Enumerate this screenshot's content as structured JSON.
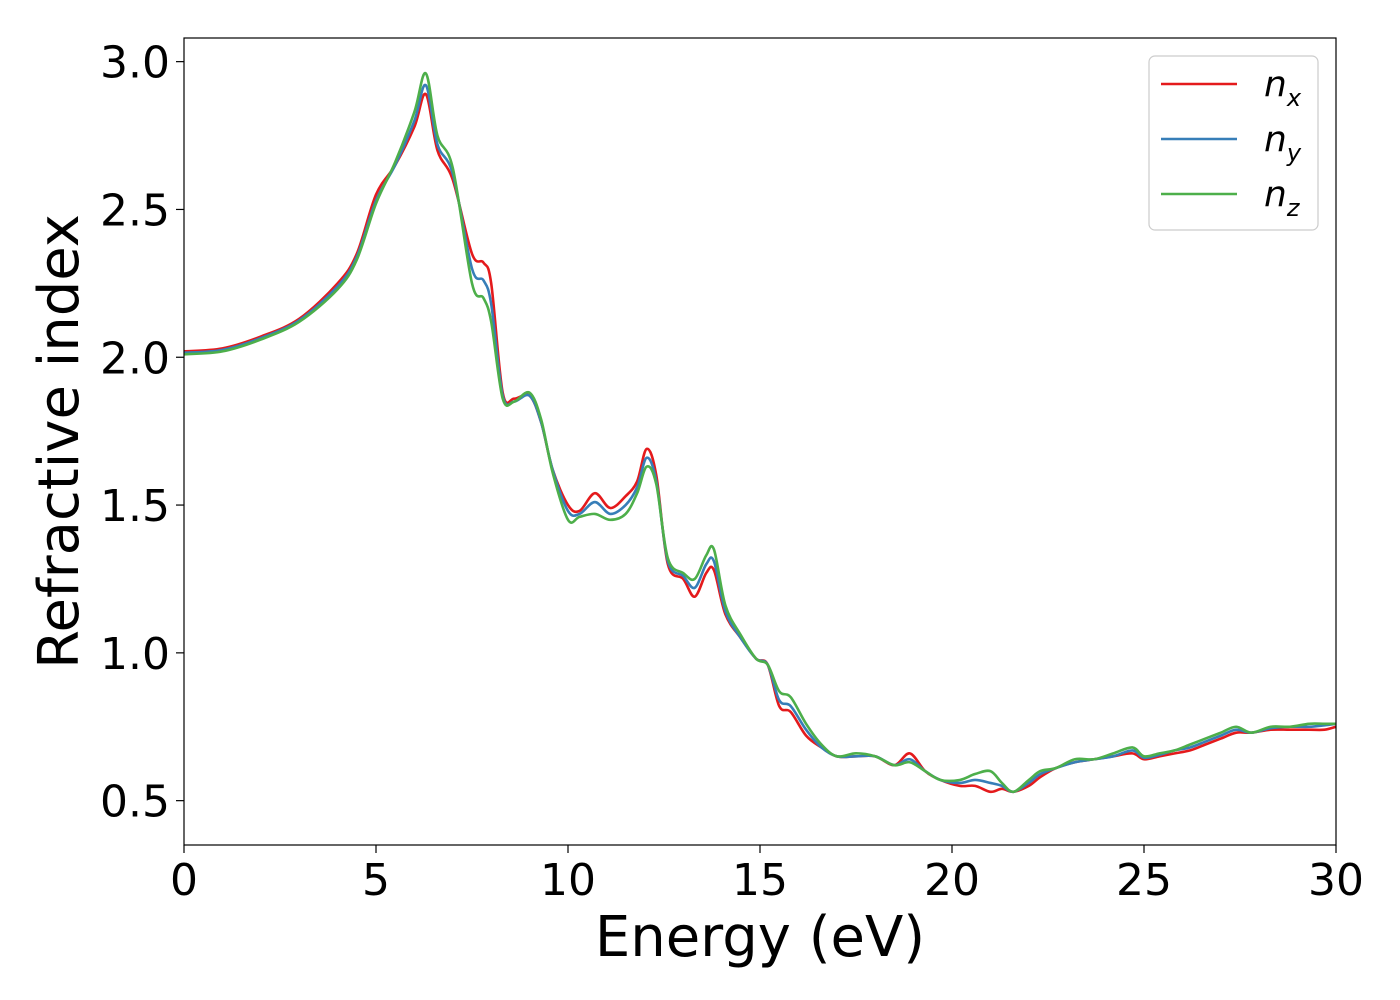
{
  "chart_data": {
    "type": "line",
    "title": "",
    "xlabel": "Energy (eV)",
    "ylabel": "Refractive index",
    "xlim": [
      0,
      30
    ],
    "ylim": [
      0.35,
      3.08
    ],
    "xticks": [
      0,
      5,
      10,
      15,
      20,
      25,
      30
    ],
    "xtick_labels": [
      "0",
      "5",
      "10",
      "15",
      "20",
      "25",
      "30"
    ],
    "yticks": [
      0.5,
      1.0,
      1.5,
      2.0,
      2.5,
      3.0
    ],
    "ytick_labels": [
      "0.5",
      "1.0",
      "1.5",
      "2.0",
      "2.5",
      "3.0"
    ],
    "grid": false,
    "legend_position": "top-right",
    "series": [
      {
        "name": "n_x",
        "label_main": "n",
        "label_sub": "x",
        "color": "#e41a1c",
        "x": [
          0,
          1,
          2,
          3,
          4,
          4.5,
          5,
          5.5,
          6,
          6.3,
          6.6,
          7,
          7.5,
          7.8,
          8,
          8.3,
          8.6,
          9,
          9.3,
          9.6,
          10,
          10.3,
          10.7,
          11.1,
          11.5,
          11.8,
          12.05,
          12.3,
          12.6,
          13,
          13.3,
          13.6,
          13.8,
          14.1,
          14.5,
          14.9,
          15.2,
          15.5,
          15.8,
          16.2,
          16.6,
          17,
          17.5,
          18,
          18.5,
          18.9,
          19.3,
          19.7,
          20.2,
          20.6,
          21,
          21.3,
          21.6,
          22,
          22.3,
          22.7,
          23.2,
          23.7,
          24.2,
          24.7,
          25,
          25.4,
          25.8,
          26.2,
          26.6,
          27,
          27.4,
          27.8,
          28.3,
          28.8,
          29.3,
          29.7,
          30
        ],
        "y": [
          2.02,
          2.03,
          2.07,
          2.13,
          2.25,
          2.35,
          2.55,
          2.65,
          2.78,
          2.89,
          2.7,
          2.6,
          2.35,
          2.32,
          2.25,
          1.88,
          1.86,
          1.87,
          1.78,
          1.62,
          1.5,
          1.48,
          1.54,
          1.49,
          1.53,
          1.58,
          1.69,
          1.6,
          1.3,
          1.25,
          1.19,
          1.27,
          1.28,
          1.13,
          1.05,
          0.98,
          0.96,
          0.82,
          0.8,
          0.72,
          0.68,
          0.65,
          0.65,
          0.65,
          0.62,
          0.66,
          0.6,
          0.57,
          0.55,
          0.55,
          0.53,
          0.54,
          0.53,
          0.55,
          0.58,
          0.61,
          0.63,
          0.64,
          0.65,
          0.66,
          0.64,
          0.65,
          0.66,
          0.67,
          0.69,
          0.71,
          0.73,
          0.73,
          0.74,
          0.74,
          0.74,
          0.74,
          0.75
        ]
      },
      {
        "name": "n_y",
        "label_main": "n",
        "label_sub": "y",
        "color": "#377eb8",
        "x": [
          0,
          1,
          2,
          3,
          4,
          4.5,
          5,
          5.5,
          6,
          6.3,
          6.6,
          7,
          7.5,
          7.8,
          8,
          8.3,
          8.6,
          9,
          9.3,
          9.6,
          10,
          10.3,
          10.7,
          11.1,
          11.5,
          11.8,
          12.05,
          12.3,
          12.6,
          13,
          13.3,
          13.6,
          13.8,
          14.1,
          14.5,
          14.9,
          15.2,
          15.5,
          15.8,
          16.2,
          16.6,
          17,
          17.5,
          18,
          18.5,
          18.9,
          19.3,
          19.7,
          20.2,
          20.6,
          21,
          21.3,
          21.6,
          22,
          22.3,
          22.7,
          23.2,
          23.7,
          24.2,
          24.7,
          25,
          25.4,
          25.8,
          26.2,
          26.6,
          27,
          27.4,
          27.8,
          28.3,
          28.8,
          29.3,
          29.7,
          30
        ],
        "y": [
          2.015,
          2.025,
          2.065,
          2.125,
          2.24,
          2.34,
          2.53,
          2.65,
          2.8,
          2.92,
          2.72,
          2.62,
          2.3,
          2.26,
          2.18,
          1.87,
          1.85,
          1.87,
          1.78,
          1.62,
          1.48,
          1.47,
          1.51,
          1.47,
          1.5,
          1.56,
          1.66,
          1.58,
          1.31,
          1.26,
          1.22,
          1.3,
          1.31,
          1.14,
          1.05,
          0.98,
          0.96,
          0.84,
          0.82,
          0.74,
          0.68,
          0.65,
          0.65,
          0.65,
          0.62,
          0.64,
          0.6,
          0.57,
          0.56,
          0.57,
          0.56,
          0.55,
          0.53,
          0.56,
          0.59,
          0.61,
          0.63,
          0.64,
          0.65,
          0.67,
          0.645,
          0.655,
          0.67,
          0.68,
          0.7,
          0.72,
          0.74,
          0.73,
          0.745,
          0.75,
          0.75,
          0.755,
          0.76
        ]
      },
      {
        "name": "n_z",
        "label_main": "n",
        "label_sub": "z",
        "color": "#4daf4a",
        "x": [
          0,
          1,
          2,
          3,
          4,
          4.5,
          5,
          5.5,
          6,
          6.3,
          6.6,
          7,
          7.5,
          7.8,
          8,
          8.3,
          8.6,
          9,
          9.3,
          9.6,
          10,
          10.3,
          10.7,
          11.1,
          11.5,
          11.8,
          12.05,
          12.3,
          12.6,
          13,
          13.3,
          13.6,
          13.8,
          14.1,
          14.5,
          14.9,
          15.2,
          15.5,
          15.8,
          16.2,
          16.6,
          17,
          17.5,
          18,
          18.5,
          18.9,
          19.3,
          19.7,
          20.2,
          20.6,
          21,
          21.3,
          21.6,
          22,
          22.3,
          22.7,
          23.2,
          23.7,
          24.2,
          24.7,
          25,
          25.4,
          25.8,
          26.2,
          26.6,
          27,
          27.4,
          27.8,
          28.3,
          28.8,
          29.3,
          29.7,
          30
        ],
        "y": [
          2.01,
          2.02,
          2.06,
          2.12,
          2.23,
          2.33,
          2.52,
          2.66,
          2.83,
          2.96,
          2.75,
          2.64,
          2.25,
          2.2,
          2.12,
          1.86,
          1.85,
          1.88,
          1.79,
          1.61,
          1.45,
          1.46,
          1.47,
          1.45,
          1.47,
          1.54,
          1.63,
          1.57,
          1.32,
          1.27,
          1.25,
          1.33,
          1.35,
          1.16,
          1.06,
          0.98,
          0.96,
          0.87,
          0.85,
          0.76,
          0.69,
          0.65,
          0.66,
          0.65,
          0.62,
          0.63,
          0.6,
          0.57,
          0.57,
          0.59,
          0.6,
          0.56,
          0.53,
          0.57,
          0.6,
          0.61,
          0.64,
          0.64,
          0.66,
          0.68,
          0.65,
          0.66,
          0.67,
          0.69,
          0.71,
          0.73,
          0.75,
          0.73,
          0.75,
          0.75,
          0.76,
          0.76,
          0.76
        ]
      }
    ]
  }
}
